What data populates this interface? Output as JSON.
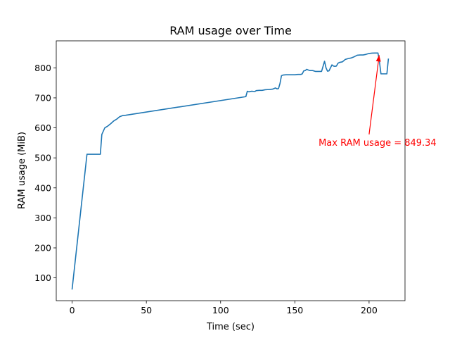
{
  "chart_data": {
    "type": "line",
    "title": "RAM usage over Time",
    "xlabel": "Time (sec)",
    "ylabel": "RAM usage (MiB)",
    "xlim": [
      -10.7,
      224.2
    ],
    "ylim": [
      24,
      890
    ],
    "xticks": [
      0,
      50,
      100,
      150,
      200
    ],
    "yticks": [
      100,
      200,
      300,
      400,
      500,
      600,
      700,
      800
    ],
    "grid": false,
    "line_color": "#1f77b4",
    "series": [
      {
        "x": [
          0,
          10,
          19,
          20,
          22,
          24,
          26,
          28,
          30,
          32,
          34,
          36,
          117,
          118,
          119,
          121,
          123,
          124,
          126,
          128,
          130,
          133,
          135,
          137,
          138,
          139,
          140,
          141,
          142,
          144,
          146,
          148,
          150,
          152,
          154,
          155,
          156,
          157,
          158,
          160,
          162,
          164,
          166,
          168,
          170,
          171,
          172,
          173,
          174,
          175,
          176,
          177,
          178,
          179,
          180,
          182,
          184,
          186,
          188,
          190,
          192,
          194,
          196,
          198,
          200,
          202,
          204,
          206,
          207,
          208,
          210,
          212,
          213
        ],
        "y": [
          63,
          512,
          512,
          578,
          600,
          606,
          614,
          623,
          629,
          637,
          641,
          642,
          704,
          722,
          720,
          722,
          721,
          724,
          725,
          725,
          727,
          728,
          729,
          733,
          730,
          731,
          748,
          774,
          776,
          777,
          777,
          777,
          777,
          778,
          778,
          780,
          790,
          791,
          795,
          791,
          791,
          788,
          788,
          788,
          822,
          800,
          789,
          790,
          800,
          810,
          806,
          805,
          806,
          815,
          818,
          820,
          828,
          831,
          833,
          837,
          842,
          843,
          843,
          845,
          848,
          849,
          849.34,
          849.34,
          820,
          780,
          780,
          780,
          829
        ]
      }
    ],
    "annotation": {
      "text": "Max RAM usage = 849.34",
      "x": 207,
      "y": 849.34,
      "text_x": 200,
      "text_y": 550,
      "color": "#ff0000"
    }
  }
}
